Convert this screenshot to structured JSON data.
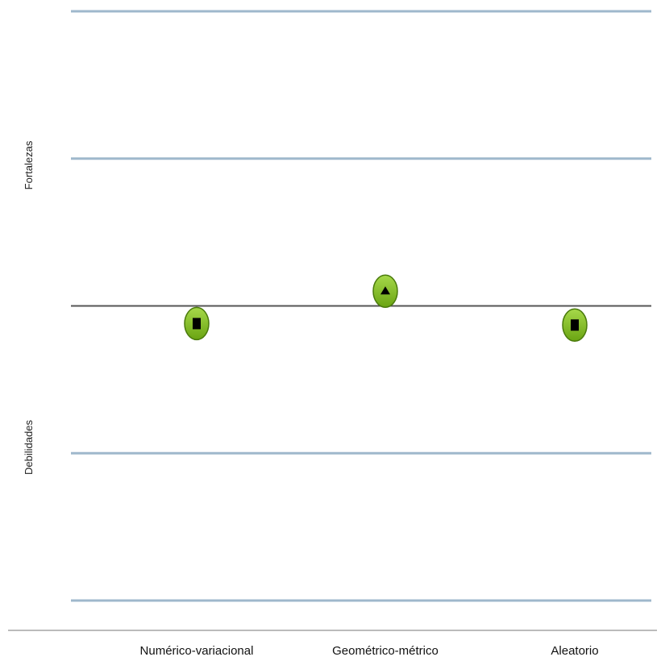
{
  "chart_data": {
    "type": "scatter",
    "categories": [
      "Numérico-variacional",
      "Geométrico-métrico",
      "Aleatorio"
    ],
    "values": [
      -0.12,
      0.1,
      -0.13
    ],
    "markers": [
      "square",
      "triangle-up",
      "square"
    ],
    "ylim": [
      -2,
      2
    ],
    "gridlines": [
      -2,
      -1,
      0,
      1,
      2
    ],
    "grid": true,
    "zero_line": true,
    "band_labels": {
      "upper": "Fortalezas",
      "lower": "Debilidades"
    },
    "colors": {
      "marker_fill": "#7cb518",
      "marker_edge": "#4a7a0c",
      "marker_symbol": "#000000",
      "gridline": "#9fb8cc",
      "zero_line": "#555555",
      "axis": "#777777"
    }
  }
}
